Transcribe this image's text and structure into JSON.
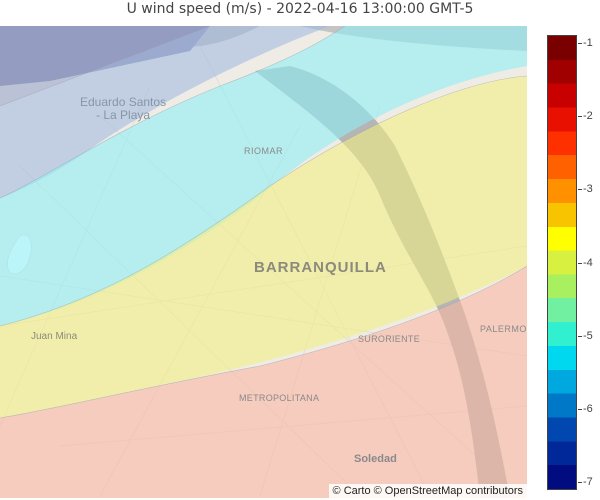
{
  "title": "U wind speed (m/s) - 2022-04-16 13:00:00 GMT-5",
  "map": {
    "labels": {
      "eduardo_santos": "Eduardo Santos\n- La Playa",
      "riomar": "RIOMAR",
      "barranquilla": "BARRANQUILLA",
      "juan_mina": "Juan Mina",
      "suroriente": "SURORIENTE",
      "palermo": "PALERMO",
      "metropolitana": "METROPOLITANA",
      "soledad": "Soledad"
    },
    "attribution": "© Carto © OpenStreetMap contributors",
    "bands": [
      {
        "value_range": [
          -7,
          -6.5
        ],
        "color": "#8fa0c8"
      },
      {
        "value_range": [
          -5.5,
          -5
        ],
        "color": "#8fe8f0"
      },
      {
        "value_range": [
          -5,
          -4.5
        ],
        "color": "#80f0e0"
      },
      {
        "value_range": [
          -4,
          -3.5
        ],
        "color": "#f0f080"
      },
      {
        "value_range": [
          -3,
          -2.5
        ],
        "color": "#f8b8a0"
      }
    ]
  },
  "colorbar": {
    "min": -7,
    "max": -1,
    "ticks": [
      "-1",
      "-2",
      "-3",
      "-4",
      "-5",
      "-6",
      "-7"
    ],
    "colors": [
      "#7a0000",
      "#a00000",
      "#c80000",
      "#e81000",
      "#ff3000",
      "#ff6000",
      "#ff9000",
      "#f8c400",
      "#ffff00",
      "#d8f040",
      "#a8f060",
      "#70f0a0",
      "#30f0d0",
      "#00d8f0",
      "#00a8e0",
      "#0078c8",
      "#0048b0",
      "#002898",
      "#000c80"
    ]
  },
  "theme": {
    "water": "#a7a7a7",
    "land": "#f2f0ec"
  }
}
